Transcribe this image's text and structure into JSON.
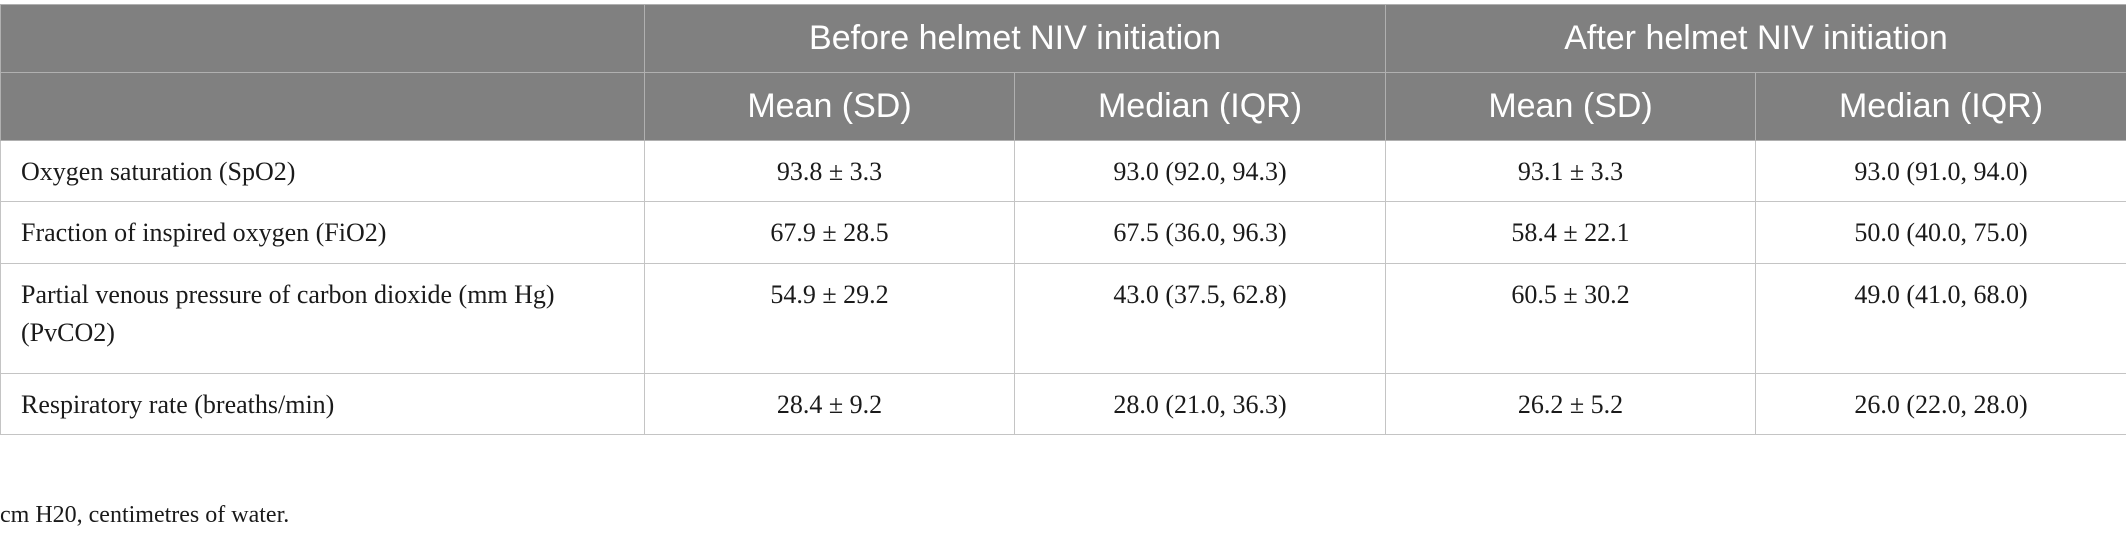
{
  "table": {
    "group_headers": [
      "",
      "Before helmet NIV initiation",
      "After helmet NIV initiation"
    ],
    "sub_headers": [
      "",
      "Mean (SD)",
      "Median (IQR)",
      "Mean (SD)",
      "Median (IQR)"
    ],
    "rows": [
      {
        "label": "Oxygen saturation (SpO2)",
        "before_mean": "93.8 ± 3.3",
        "before_median": "93.0 (92.0, 94.3)",
        "after_mean": "93.1 ± 3.3",
        "after_median": "93.0 (91.0, 94.0)"
      },
      {
        "label": "Fraction of inspired oxygen (FiO2)",
        "before_mean": "67.9 ± 28.5",
        "before_median": "67.5 (36.0, 96.3)",
        "after_mean": "58.4 ± 22.1",
        "after_median": "50.0 (40.0, 75.0)"
      },
      {
        "label": "Partial venous pressure of carbon dioxide (mm Hg) (PvCO2)",
        "before_mean": "54.9 ± 29.2",
        "before_median": "43.0 (37.5, 62.8)",
        "after_mean": "60.5 ± 30.2",
        "after_median": "49.0 (41.0, 68.0)"
      },
      {
        "label": "Respiratory rate (breaths/min)",
        "before_mean": "28.4 ± 9.2",
        "before_median": "28.0 (21.0, 36.3)",
        "after_mean": "26.2 ± 5.2",
        "after_median": "26.0 (22.0, 28.0)"
      }
    ]
  },
  "footnote": "cm H20, centimetres of water."
}
